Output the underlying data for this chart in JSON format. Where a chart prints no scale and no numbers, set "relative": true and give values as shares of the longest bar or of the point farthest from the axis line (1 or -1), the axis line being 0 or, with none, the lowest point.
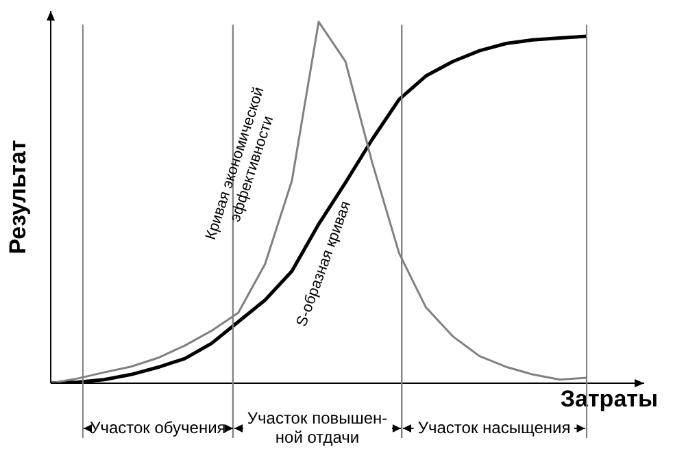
{
  "chart_data": {
    "type": "line",
    "relative": true,
    "xlabel": "Затраты",
    "ylabel": "Результат",
    "categories": [
      null,
      null,
      null,
      null,
      null,
      null,
      null,
      null,
      null,
      null,
      null,
      null,
      null,
      null,
      null,
      null,
      null,
      null,
      null,
      null,
      null
    ],
    "series": [
      {
        "name": "Кривая экономической эффективности",
        "color": "#808080",
        "values": [
          0,
          0.013,
          0.03,
          0.046,
          0.07,
          0.104,
          0.145,
          0.195,
          0.33,
          0.56,
          1,
          0.89,
          0.61,
          0.36,
          0.21,
          0.13,
          0.075,
          0.045,
          0.024,
          0.01,
          0.015
        ]
      },
      {
        "name": "S-образная кривая",
        "color": "#000000",
        "values": [
          0,
          0.003,
          0.01,
          0.024,
          0.044,
          0.068,
          0.11,
          0.17,
          0.23,
          0.31,
          0.44,
          0.555,
          0.675,
          0.785,
          0.85,
          0.89,
          0.92,
          0.94,
          0.95,
          0.955,
          0.96
        ]
      }
    ],
    "annotations": [
      "Участок обучения",
      "Участок повышен-\nной отдачи",
      "Участок насыщения"
    ]
  }
}
